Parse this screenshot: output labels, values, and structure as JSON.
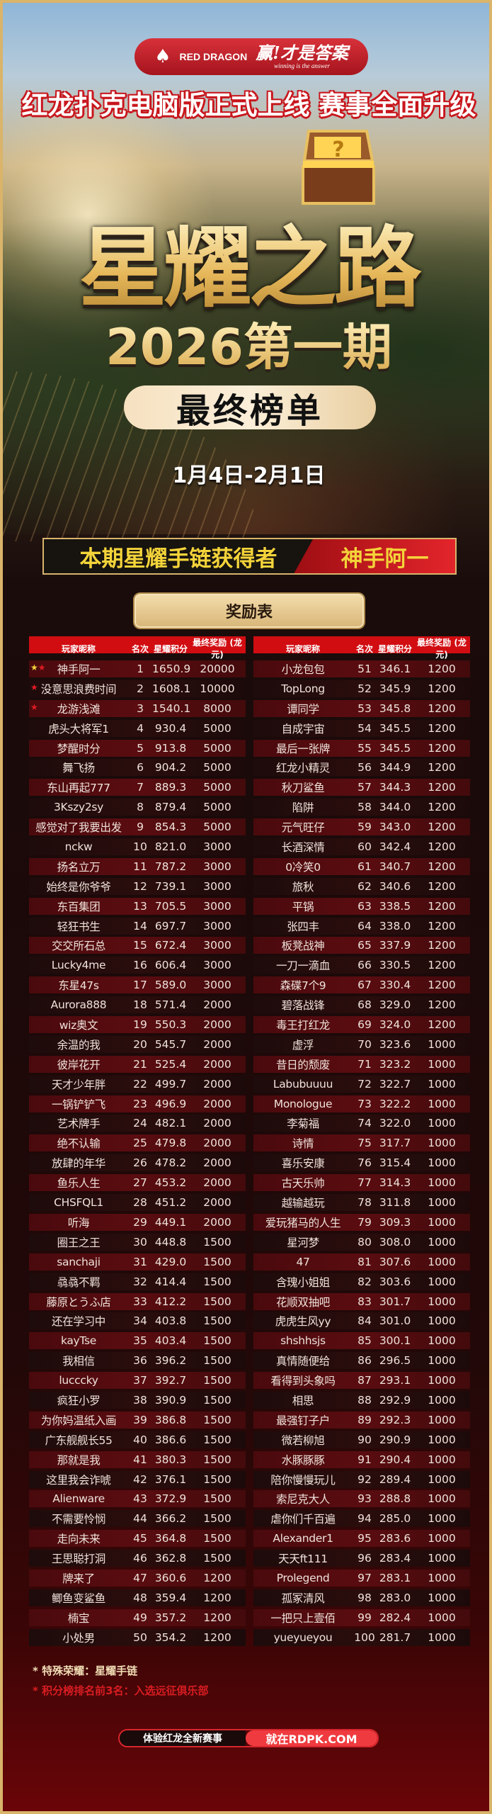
{
  "brand": {
    "logo_text": "RED DRAGON",
    "slogan_cn": "赢!才是答案",
    "slogan_en": "winning is the answer"
  },
  "header": {
    "subtitle": "红龙扑克电脑版正式上线 赛事全面升级",
    "title": "星耀之路",
    "edition": "2026第一期",
    "badge": "最终榜单",
    "dates": "1月4日-2月1日"
  },
  "winner": {
    "label": "本期星耀手链获得者",
    "name": "神手阿一"
  },
  "reward_table": {
    "title": "奖励表",
    "columns": [
      "玩家昵称",
      "名次",
      "星耀积分",
      "最终奖励 (龙元)"
    ]
  },
  "colors": {
    "header_red": "#d10d12",
    "gold": "#d9b46a",
    "star_yellow": "#f6d23a",
    "star_red": "#e01b22"
  },
  "table": {
    "left": [
      [
        "神手阿一",
        "1",
        "1650.9",
        "20000"
      ],
      [
        "没意思浪费时间",
        "2",
        "1608.1",
        "10000"
      ],
      [
        "龙游浅滩",
        "3",
        "1540.1",
        "8000"
      ],
      [
        "虎头大将军1",
        "4",
        "930.4",
        "5000"
      ],
      [
        "梦醒时分",
        "5",
        "913.8",
        "5000"
      ],
      [
        "舞飞扬",
        "6",
        "904.2",
        "5000"
      ],
      [
        "东山再起777",
        "7",
        "889.3",
        "5000"
      ],
      [
        "3Kszy2sy",
        "8",
        "879.4",
        "5000"
      ],
      [
        "感觉对了我要出发",
        "9",
        "854.3",
        "5000"
      ],
      [
        "nckw",
        "10",
        "821.0",
        "3000"
      ],
      [
        "扬名立万",
        "11",
        "787.2",
        "3000"
      ],
      [
        "始终是你爷爷",
        "12",
        "739.1",
        "3000"
      ],
      [
        "东百集团",
        "13",
        "705.5",
        "3000"
      ],
      [
        "轻狂书生",
        "14",
        "697.7",
        "3000"
      ],
      [
        "交交所石总",
        "15",
        "672.4",
        "3000"
      ],
      [
        "Lucky4me",
        "16",
        "606.4",
        "3000"
      ],
      [
        "东星47s",
        "17",
        "589.0",
        "3000"
      ],
      [
        "Aurora888",
        "18",
        "571.4",
        "2000"
      ],
      [
        "wiz奥文",
        "19",
        "550.3",
        "2000"
      ],
      [
        "余温的我",
        "20",
        "545.7",
        "2000"
      ],
      [
        "彼岸花开",
        "21",
        "525.4",
        "2000"
      ],
      [
        "天才少年胖",
        "22",
        "499.7",
        "2000"
      ],
      [
        "一锅铲铲飞",
        "23",
        "496.9",
        "2000"
      ],
      [
        "艺术牌手",
        "24",
        "482.1",
        "2000"
      ],
      [
        "绝不认输",
        "25",
        "479.8",
        "2000"
      ],
      [
        "放肆的年华",
        "26",
        "478.2",
        "2000"
      ],
      [
        "鱼乐人生",
        "27",
        "453.2",
        "2000"
      ],
      [
        "CHSFQL1",
        "28",
        "451.2",
        "2000"
      ],
      [
        "听海",
        "29",
        "449.1",
        "2000"
      ],
      [
        "圈王之王",
        "30",
        "448.8",
        "1500"
      ],
      [
        "sanchaji",
        "31",
        "429.0",
        "1500"
      ],
      [
        "骉骉不羁",
        "32",
        "414.4",
        "1500"
      ],
      [
        "藤原とうふ店",
        "33",
        "412.2",
        "1500"
      ],
      [
        "还在学习中",
        "34",
        "403.8",
        "1500"
      ],
      [
        "kayTse",
        "35",
        "403.4",
        "1500"
      ],
      [
        "我相信",
        "36",
        "396.2",
        "1500"
      ],
      [
        "lucccky",
        "37",
        "392.7",
        "1500"
      ],
      [
        "疯狂小罗",
        "38",
        "390.9",
        "1500"
      ],
      [
        "为你妈温纸入画",
        "39",
        "386.8",
        "1500"
      ],
      [
        "广东舰舰长55",
        "40",
        "386.6",
        "1500"
      ],
      [
        "那就是我",
        "41",
        "380.3",
        "1500"
      ],
      [
        "这里我会诈唬",
        "42",
        "376.1",
        "1500"
      ],
      [
        "Alienware",
        "43",
        "372.9",
        "1500"
      ],
      [
        "不需要怜悯",
        "44",
        "366.2",
        "1500"
      ],
      [
        "走向未来",
        "45",
        "364.8",
        "1500"
      ],
      [
        "王思聪打洞",
        "46",
        "362.8",
        "1500"
      ],
      [
        "牌来了",
        "47",
        "360.6",
        "1200"
      ],
      [
        "鲫鱼变鲨鱼",
        "48",
        "359.4",
        "1200"
      ],
      [
        "楠宝",
        "49",
        "357.2",
        "1200"
      ],
      [
        "小处男",
        "50",
        "354.2",
        "1200"
      ]
    ],
    "right": [
      [
        "小龙包包",
        "51",
        "346.1",
        "1200"
      ],
      [
        "TopLong",
        "52",
        "345.9",
        "1200"
      ],
      [
        "谭同学",
        "53",
        "345.8",
        "1200"
      ],
      [
        "自成宇宙",
        "54",
        "345.5",
        "1200"
      ],
      [
        "最后一张牌",
        "55",
        "345.5",
        "1200"
      ],
      [
        "红龙小精灵",
        "56",
        "344.9",
        "1200"
      ],
      [
        "秋刀鲨鱼",
        "57",
        "344.3",
        "1200"
      ],
      [
        "陷阱",
        "58",
        "344.0",
        "1200"
      ],
      [
        "元气旺仔",
        "59",
        "343.0",
        "1200"
      ],
      [
        "长酒深情",
        "60",
        "342.4",
        "1200"
      ],
      [
        "0冷笑0",
        "61",
        "340.7",
        "1200"
      ],
      [
        "旅秋",
        "62",
        "340.6",
        "1200"
      ],
      [
        "平锅",
        "63",
        "338.5",
        "1200"
      ],
      [
        "张四丰",
        "64",
        "338.0",
        "1200"
      ],
      [
        "板凳战神",
        "65",
        "337.9",
        "1200"
      ],
      [
        "一刀一滴血",
        "66",
        "330.5",
        "1200"
      ],
      [
        "森碟7个9",
        "67",
        "330.4",
        "1200"
      ],
      [
        "碧落战锋",
        "68",
        "329.0",
        "1200"
      ],
      [
        "毒王打红龙",
        "69",
        "324.0",
        "1200"
      ],
      [
        "虚浮",
        "70",
        "323.6",
        "1000"
      ],
      [
        "昔日的颓废",
        "71",
        "323.2",
        "1000"
      ],
      [
        "Labubuuuu",
        "72",
        "322.7",
        "1000"
      ],
      [
        "Monologue",
        "73",
        "322.2",
        "1000"
      ],
      [
        "李菊福",
        "74",
        "322.0",
        "1000"
      ],
      [
        "诗情",
        "75",
        "317.7",
        "1000"
      ],
      [
        "喜乐安康",
        "76",
        "315.4",
        "1000"
      ],
      [
        "古天乐帅",
        "77",
        "314.3",
        "1000"
      ],
      [
        "越输越玩",
        "78",
        "311.8",
        "1000"
      ],
      [
        "爱玩猪马的人生",
        "79",
        "309.3",
        "1000"
      ],
      [
        "星河梦",
        "80",
        "308.0",
        "1000"
      ],
      [
        "47",
        "81",
        "307.6",
        "1000"
      ],
      [
        "含瑰小姐姐",
        "82",
        "303.6",
        "1000"
      ],
      [
        "花顺双抽吧",
        "83",
        "301.7",
        "1000"
      ],
      [
        "虎虎生风yy",
        "84",
        "301.0",
        "1000"
      ],
      [
        "shshhsjs",
        "85",
        "300.1",
        "1000"
      ],
      [
        "真情随便给",
        "86",
        "296.5",
        "1000"
      ],
      [
        "看得到头象吗",
        "87",
        "293.1",
        "1000"
      ],
      [
        "相思",
        "88",
        "292.9",
        "1000"
      ],
      [
        "最强钉子户",
        "89",
        "292.3",
        "1000"
      ],
      [
        "微若柳旭",
        "90",
        "290.9",
        "1000"
      ],
      [
        "水豚豚豚",
        "91",
        "290.4",
        "1000"
      ],
      [
        "陪你慢慢玩儿",
        "92",
        "289.4",
        "1000"
      ],
      [
        "索尼克大人",
        "93",
        "288.8",
        "1000"
      ],
      [
        "虐你们千百遍",
        "94",
        "285.0",
        "1000"
      ],
      [
        "Alexander1",
        "95",
        "283.6",
        "1000"
      ],
      [
        "天天ft111",
        "96",
        "283.4",
        "1000"
      ],
      [
        "Prolegend",
        "97",
        "283.1",
        "1000"
      ],
      [
        "孤冢清风",
        "98",
        "283.0",
        "1000"
      ],
      [
        "一把只上壹佰",
        "99",
        "282.4",
        "1000"
      ],
      [
        "yueyueyou",
        "100",
        "281.7",
        "1000"
      ]
    ],
    "stars": {
      "0": [
        "yellow",
        "red"
      ],
      "1": [
        "red"
      ],
      "2": [
        "red"
      ]
    }
  },
  "notes": [
    "* 特殊荣耀：星耀手链",
    "* 积分榜排名前3名：入选远征俱乐部"
  ],
  "cta": {
    "left": "体验红龙全新赛事",
    "right": "就在RDPK.COM"
  }
}
